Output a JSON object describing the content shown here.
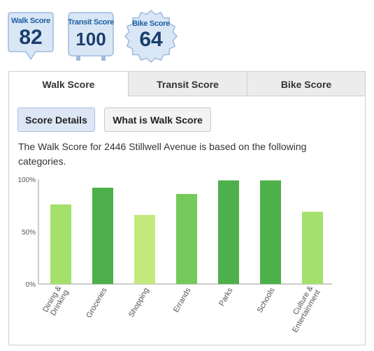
{
  "badges": [
    {
      "label": "Walk Score",
      "value": "82"
    },
    {
      "label": "Transit Score",
      "value": "100"
    },
    {
      "label": "Bike Score",
      "value": "64"
    }
  ],
  "tabs": [
    "Walk Score",
    "Transit Score",
    "Bike Score"
  ],
  "buttons": {
    "score_details": "Score Details",
    "what_is": "What is Walk Score"
  },
  "description": "The Walk Score for 2446 Stillwell Avenue is based on the following categories.",
  "colors": {
    "badge_bg": "#d9e6f5",
    "badge_border": "#9eb9dd",
    "bar_light": "#c4e97c",
    "bar_mid": "#a4e06c",
    "bar_green": "#74c95a",
    "bar_dark": "#4db04a"
  },
  "chart_data": {
    "type": "bar",
    "categories": [
      "Dining & Drinking",
      "Groceries",
      "Shopping",
      "Errands",
      "Parks",
      "Schools",
      "Culture & Entertainment"
    ],
    "values": [
      76,
      92,
      66,
      86,
      99,
      99,
      69
    ],
    "bar_colors": [
      "#a4e06c",
      "#4db04a",
      "#c4e97c",
      "#74c95a",
      "#4db04a",
      "#4db04a",
      "#a4e06c"
    ],
    "ytick_labels": [
      "100%",
      "50%",
      "0%"
    ],
    "ylim": [
      0,
      100
    ]
  }
}
